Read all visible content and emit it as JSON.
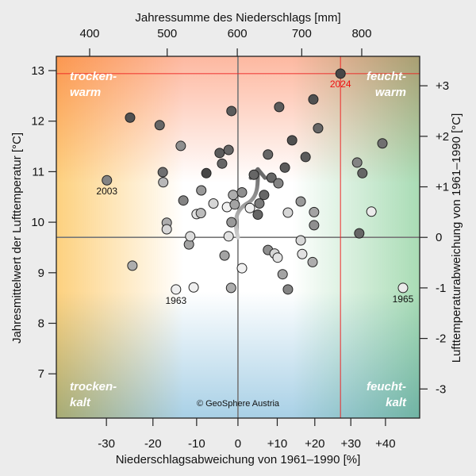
{
  "chart_data": {
    "type": "scatter",
    "title": "",
    "xlabel": "Niederschlagsabweichung von 1961–1990 [%]",
    "xlabel_top": "Jahressumme des Niederschlags [mm]",
    "ylabel": "Jahresmittelwert der Lufttemperatur [°C]",
    "ylabel_right": "Lufttemperaturabweichung von 1961–1990 [°C]",
    "x_scale": "sqrt-of-precipitation",
    "reference": {
      "precip_mm": 601,
      "temp_c": 9.7
    },
    "xlim_percent": [
      -41,
      49
    ],
    "ylim": [
      6.2,
      13.3
    ],
    "x_ticks_bottom": [
      {
        "value": -30,
        "label": "-30"
      },
      {
        "value": -20,
        "label": "-20"
      },
      {
        "value": -10,
        "label": "-10"
      },
      {
        "value": 0,
        "label": "0"
      },
      {
        "value": 10,
        "label": "+10"
      },
      {
        "value": 20,
        "label": "+20"
      },
      {
        "value": 30,
        "label": "+30"
      },
      {
        "value": 40,
        "label": "+40"
      }
    ],
    "x_ticks_top_mm": [
      {
        "value": 400,
        "label": "400"
      },
      {
        "value": 500,
        "label": "500"
      },
      {
        "value": 600,
        "label": "600"
      },
      {
        "value": 700,
        "label": "700"
      },
      {
        "value": 800,
        "label": "800"
      }
    ],
    "y_ticks_left": [
      {
        "value": 7,
        "label": "7"
      },
      {
        "value": 8,
        "label": "8"
      },
      {
        "value": 9,
        "label": "9"
      },
      {
        "value": 10,
        "label": "10"
      },
      {
        "value": 11,
        "label": "11"
      },
      {
        "value": 12,
        "label": "12"
      },
      {
        "value": 13,
        "label": "13"
      }
    ],
    "y_ticks_right": [
      {
        "value": -3,
        "label": "-3"
      },
      {
        "value": -2,
        "label": "-2"
      },
      {
        "value": -1,
        "label": "-1"
      },
      {
        "value": 0,
        "label": "0"
      },
      {
        "value": 1,
        "label": "+1"
      },
      {
        "value": 2,
        "label": "+2"
      },
      {
        "value": 3,
        "label": "+3"
      }
    ],
    "quadrant_labels": {
      "top_left": [
        "trocken-",
        "warm"
      ],
      "top_right": [
        "feucht-",
        "warm"
      ],
      "bottom_left": [
        "trocken-",
        "kalt"
      ],
      "bottom_right": [
        "feucht-",
        "kalt"
      ]
    },
    "quadrant_colors": {
      "warm": "#fdb8a0",
      "dry": "#fdd17f",
      "wet": "#a9dcb5",
      "cold": "#a8d0e6"
    },
    "highlight": {
      "year": "2024",
      "precip_pct": 27.1,
      "temp_c": 12.94,
      "color": "#ee2222"
    },
    "credit": "© GeoSphere Austria",
    "trend_arrow": {
      "from": {
        "precip_pct": 0.0,
        "temp_c": 9.7
      },
      "to": {
        "precip_pct": 5.0,
        "temp_c": 11.05
      }
    },
    "shade_meaning": "older years lighter, recent years darker",
    "points": [
      {
        "p": -29.9,
        "t": 10.83,
        "shade": 0.45,
        "label": "2003"
      },
      {
        "p": -25.0,
        "t": 12.07,
        "shade": 0.2
      },
      {
        "p": -24.5,
        "t": 9.14,
        "shade": 0.65
      },
      {
        "p": -18.5,
        "t": 11.92,
        "shade": 0.3
      },
      {
        "p": -17.8,
        "t": 10.99,
        "shade": 0.35
      },
      {
        "p": -17.7,
        "t": 10.79,
        "shade": 0.7
      },
      {
        "p": -16.9,
        "t": 9.99,
        "shade": 0.65
      },
      {
        "p": -16.9,
        "t": 9.86,
        "shade": 0.85
      },
      {
        "p": -14.8,
        "t": 8.67,
        "shade": 0.97,
        "label": "1963"
      },
      {
        "p": -13.7,
        "t": 11.51,
        "shade": 0.5
      },
      {
        "p": -13.1,
        "t": 10.43,
        "shade": 0.45
      },
      {
        "p": -11.8,
        "t": 9.56,
        "shade": 0.6
      },
      {
        "p": -11.5,
        "t": 9.72,
        "shade": 0.88
      },
      {
        "p": -10.7,
        "t": 8.71,
        "shade": 0.97
      },
      {
        "p": -10.0,
        "t": 10.16,
        "shade": 0.9
      },
      {
        "p": -9.0,
        "t": 10.18,
        "shade": 0.72
      },
      {
        "p": -8.9,
        "t": 10.63,
        "shade": 0.55
      },
      {
        "p": -7.7,
        "t": 10.97,
        "shade": 0.15
      },
      {
        "p": -6.0,
        "t": 10.37,
        "shade": 0.85
      },
      {
        "p": -4.5,
        "t": 11.37,
        "shade": 0.25
      },
      {
        "p": -3.9,
        "t": 11.16,
        "shade": 0.3
      },
      {
        "p": -3.3,
        "t": 9.34,
        "shade": 0.6
      },
      {
        "p": -2.7,
        "t": 10.3,
        "shade": 0.98
      },
      {
        "p": -2.3,
        "t": 11.43,
        "shade": 0.3
      },
      {
        "p": -2.3,
        "t": 9.72,
        "shade": 0.9
      },
      {
        "p": -1.7,
        "t": 8.7,
        "shade": 0.65
      },
      {
        "p": -1.6,
        "t": 12.2,
        "shade": 0.25
      },
      {
        "p": -1.6,
        "t": 10.0,
        "shade": 0.55
      },
      {
        "p": -1.2,
        "t": 10.54,
        "shade": 0.65
      },
      {
        "p": -0.8,
        "t": 10.35,
        "shade": 0.6
      },
      {
        "p": 1.0,
        "t": 10.59,
        "shade": 0.5
      },
      {
        "p": 1.0,
        "t": 9.09,
        "shade": 0.98
      },
      {
        "p": 3.0,
        "t": 10.28,
        "shade": 0.98
      },
      {
        "p": 4.0,
        "t": 10.94,
        "shade": 0.3
      },
      {
        "p": 5.0,
        "t": 10.15,
        "shade": 0.3
      },
      {
        "p": 5.4,
        "t": 10.37,
        "shade": 0.4
      },
      {
        "p": 6.6,
        "t": 10.54,
        "shade": 0.3
      },
      {
        "p": 7.6,
        "t": 11.34,
        "shade": 0.3
      },
      {
        "p": 7.6,
        "t": 9.45,
        "shade": 0.5
      },
      {
        "p": 8.5,
        "t": 10.88,
        "shade": 0.3
      },
      {
        "p": 9.3,
        "t": 9.38,
        "shade": 0.85
      },
      {
        "p": 10.1,
        "t": 9.3,
        "shade": 0.9
      },
      {
        "p": 10.3,
        "t": 10.77,
        "shade": 0.45
      },
      {
        "p": 10.5,
        "t": 12.28,
        "shade": 0.25
      },
      {
        "p": 11.4,
        "t": 8.97,
        "shade": 0.6
      },
      {
        "p": 12.0,
        "t": 11.08,
        "shade": 0.25
      },
      {
        "p": 12.8,
        "t": 10.19,
        "shade": 0.85
      },
      {
        "p": 12.8,
        "t": 8.67,
        "shade": 0.45
      },
      {
        "p": 13.9,
        "t": 11.62,
        "shade": 0.2
      },
      {
        "p": 16.2,
        "t": 10.41,
        "shade": 0.55
      },
      {
        "p": 16.2,
        "t": 9.64,
        "shade": 0.85
      },
      {
        "p": 16.6,
        "t": 9.37,
        "shade": 0.9
      },
      {
        "p": 17.5,
        "t": 11.29,
        "shade": 0.25
      },
      {
        "p": 19.4,
        "t": 9.21,
        "shade": 0.65
      },
      {
        "p": 19.6,
        "t": 12.43,
        "shade": 0.2
      },
      {
        "p": 19.8,
        "t": 10.2,
        "shade": 0.6
      },
      {
        "p": 19.8,
        "t": 9.94,
        "shade": 0.5
      },
      {
        "p": 20.9,
        "t": 11.86,
        "shade": 0.3
      },
      {
        "p": 27.1,
        "t": 12.94,
        "shade": 0.15,
        "label": "2024",
        "highlight": true
      },
      {
        "p": 31.8,
        "t": 11.18,
        "shade": 0.45
      },
      {
        "p": 32.4,
        "t": 9.78,
        "shade": 0.3
      },
      {
        "p": 33.3,
        "t": 10.97,
        "shade": 0.3
      },
      {
        "p": 35.9,
        "t": 10.21,
        "shade": 0.95
      },
      {
        "p": 39.1,
        "t": 11.56,
        "shade": 0.35
      },
      {
        "p": 45.2,
        "t": 8.7,
        "shade": 0.95,
        "label": "1965"
      }
    ]
  }
}
